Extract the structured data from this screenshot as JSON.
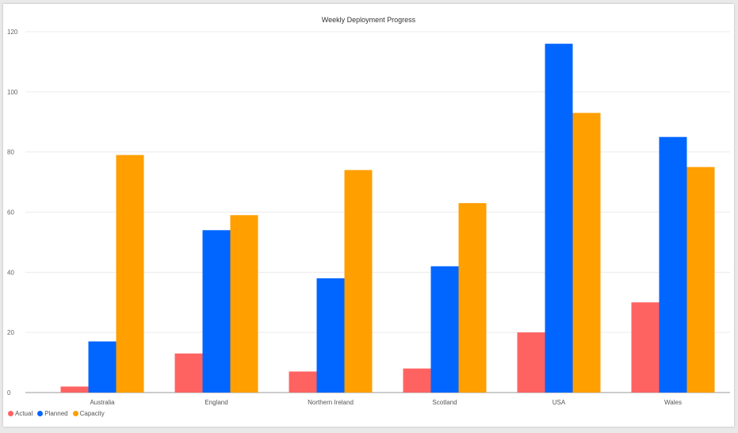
{
  "chart_data": {
    "type": "bar",
    "title": "Weekly Deployment Progress",
    "categories": [
      "Australia",
      "England",
      "Northern Ireland",
      "Scotland",
      "USA",
      "Wales"
    ],
    "series": [
      {
        "name": "Actual",
        "color": "#ff6361",
        "values": [
          2,
          13,
          7,
          8,
          20,
          30
        ]
      },
      {
        "name": "Planned",
        "color": "#0066ff",
        "values": [
          17,
          54,
          38,
          42,
          116,
          85
        ]
      },
      {
        "name": "Capacity",
        "color": "#ff9f00",
        "values": [
          79,
          59,
          74,
          63,
          93,
          75
        ]
      }
    ],
    "yticks": [
      0,
      20,
      40,
      60,
      80,
      100,
      120
    ],
    "ylim": [
      0,
      120
    ],
    "xlabel": "",
    "ylabel": "",
    "grid": true,
    "legend_position": "bottom-left"
  }
}
